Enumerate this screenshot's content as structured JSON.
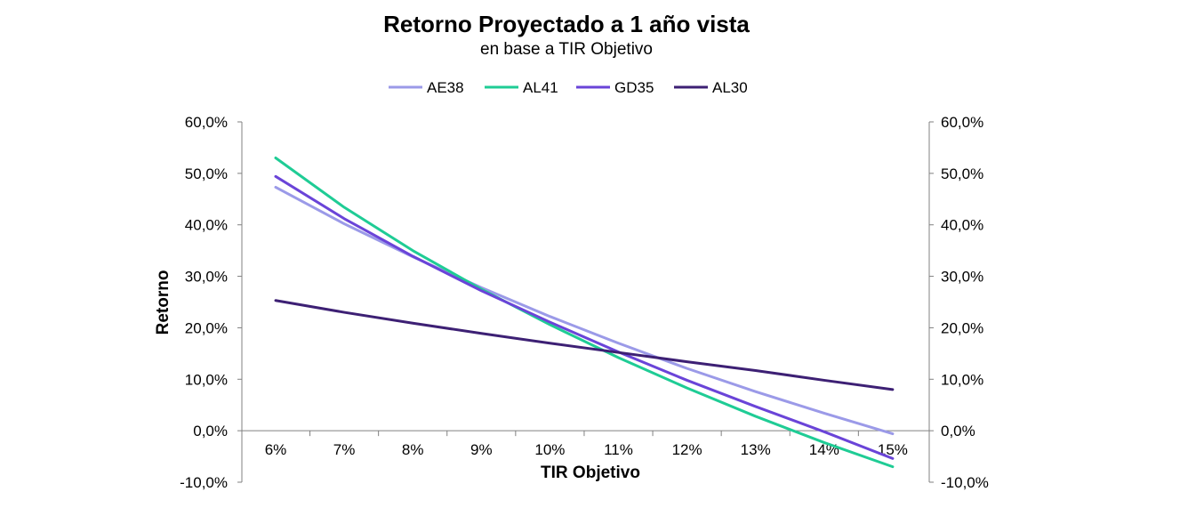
{
  "chart_data": {
    "type": "line",
    "title": "Retorno Proyectado a 1 año vista",
    "subtitle": "en base a TIR Objetivo",
    "xlabel": "TIR Objetivo",
    "ylabel": "Retorno",
    "categories": [
      "6%",
      "7%",
      "8%",
      "9%",
      "10%",
      "11%",
      "12%",
      "13%",
      "14%",
      "15%"
    ],
    "y_ticks": [
      "-10,0%",
      "0,0%",
      "10,0%",
      "20,0%",
      "30,0%",
      "40,0%",
      "50,0%",
      "60,0%"
    ],
    "ylim": [
      -10,
      60
    ],
    "y_step": 10,
    "secondary_axis": true,
    "legend_position": "top",
    "series": [
      {
        "name": "AE38",
        "color": "#9b9ae8",
        "values": [
          47.3,
          40.2,
          33.8,
          27.8,
          22.2,
          17.0,
          12.1,
          7.6,
          3.4,
          -0.6
        ]
      },
      {
        "name": "AL41",
        "color": "#1fcc95",
        "values": [
          53.0,
          43.4,
          35.0,
          27.5,
          20.6,
          14.2,
          8.3,
          2.8,
          -2.3,
          -7.0
        ]
      },
      {
        "name": "GD35",
        "color": "#6a44d8",
        "values": [
          49.4,
          41.2,
          33.9,
          27.2,
          21.1,
          15.3,
          9.8,
          4.7,
          -0.2,
          -5.4
        ]
      },
      {
        "name": "AL30",
        "color": "#3d2074",
        "values": [
          25.3,
          23.0,
          20.9,
          18.9,
          17.0,
          15.2,
          13.4,
          11.7,
          9.8,
          8.0
        ]
      }
    ]
  }
}
